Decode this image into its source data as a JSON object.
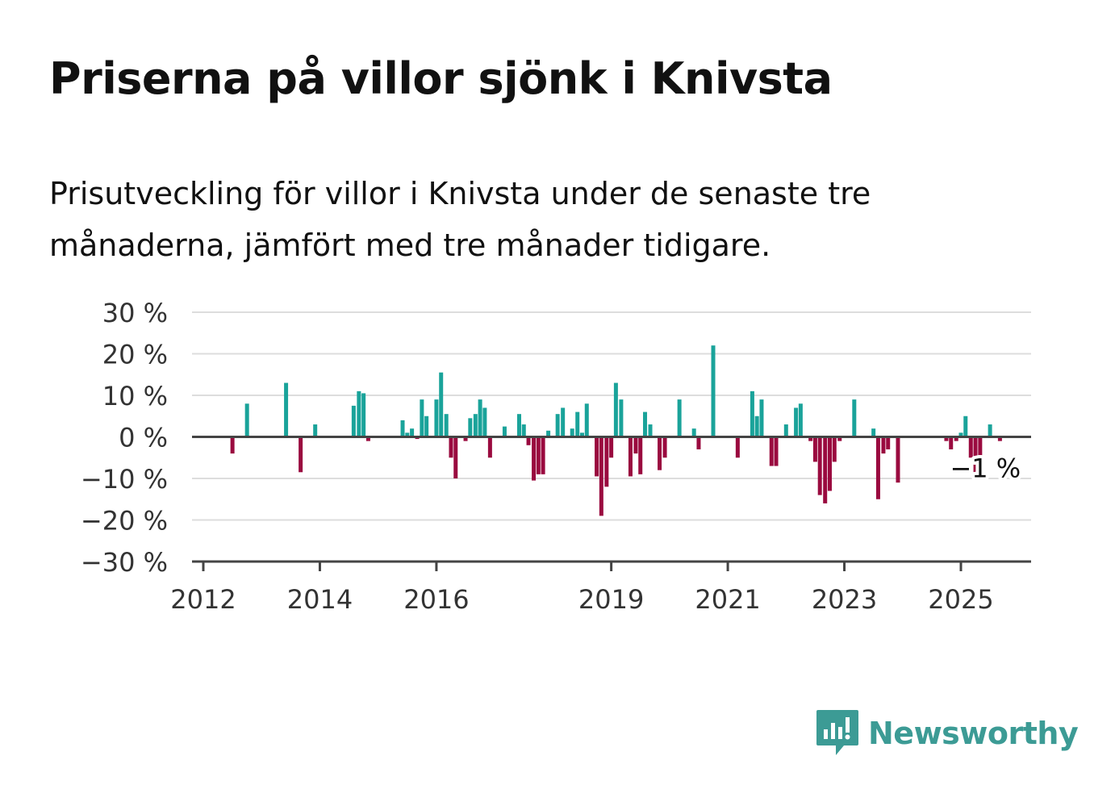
{
  "title": "Priserna på villor sjönk i Knivsta",
  "subtitle": "Prisutveckling för villor i Knivsta under de senaste tre månaderna, jämfört med tre månader tidigare.",
  "brand": {
    "name": "Newsworthy",
    "icon": "newsworthy-logo-icon"
  },
  "colors": {
    "positive": "#1aa39a",
    "negative": "#9a0a3f",
    "grid": "#dddddd",
    "axis": "#444444"
  },
  "chart_data": {
    "type": "bar",
    "x_unit": "year",
    "ylim": [
      -30,
      30
    ],
    "y_ticks": [
      {
        "value": 30,
        "label": "30 %"
      },
      {
        "value": 20,
        "label": "20 %"
      },
      {
        "value": 10,
        "label": "10 %"
      },
      {
        "value": 0,
        "label": "0 %"
      },
      {
        "value": -10,
        "label": "−10 %"
      },
      {
        "value": -20,
        "label": "−20 %"
      },
      {
        "value": -30,
        "label": "−30 %"
      }
    ],
    "x_ticks": [
      {
        "value": 2012,
        "label": "2012"
      },
      {
        "value": 2014,
        "label": "2014"
      },
      {
        "value": 2016,
        "label": "2016"
      },
      {
        "value": 2019,
        "label": "2019"
      },
      {
        "value": 2021,
        "label": "2021"
      },
      {
        "value": 2023,
        "label": "2023"
      },
      {
        "value": 2025,
        "label": "2025"
      }
    ],
    "xlim": [
      2011.8,
      2026.2
    ],
    "grid": true,
    "annotation": {
      "x": 2025.42,
      "y": -1,
      "label": "−1 %"
    },
    "points": [
      [
        2012.5,
        -4
      ],
      [
        2012.75,
        8
      ],
      [
        2013.42,
        13
      ],
      [
        2013.67,
        -8.5
      ],
      [
        2013.92,
        3
      ],
      [
        2014.58,
        7.5
      ],
      [
        2014.67,
        11
      ],
      [
        2014.75,
        10.5
      ],
      [
        2014.83,
        -1
      ],
      [
        2015.42,
        4
      ],
      [
        2015.5,
        1
      ],
      [
        2015.58,
        2
      ],
      [
        2015.67,
        -0.5
      ],
      [
        2015.75,
        9
      ],
      [
        2015.83,
        5
      ],
      [
        2016.0,
        9
      ],
      [
        2016.08,
        15.5
      ],
      [
        2016.17,
        5.5
      ],
      [
        2016.25,
        -5
      ],
      [
        2016.33,
        -10
      ],
      [
        2016.5,
        -1
      ],
      [
        2016.58,
        4.5
      ],
      [
        2016.67,
        5.5
      ],
      [
        2016.75,
        9
      ],
      [
        2016.83,
        7
      ],
      [
        2016.92,
        -5
      ],
      [
        2017.17,
        2.5
      ],
      [
        2017.42,
        5.5
      ],
      [
        2017.5,
        3
      ],
      [
        2017.58,
        -2
      ],
      [
        2017.67,
        -10.5
      ],
      [
        2017.75,
        -9
      ],
      [
        2017.83,
        -9
      ],
      [
        2017.92,
        1.5
      ],
      [
        2018.08,
        5.5
      ],
      [
        2018.17,
        7
      ],
      [
        2018.33,
        2
      ],
      [
        2018.42,
        6
      ],
      [
        2018.5,
        1
      ],
      [
        2018.58,
        8
      ],
      [
        2018.75,
        -9.5
      ],
      [
        2018.83,
        -19
      ],
      [
        2018.92,
        -12
      ],
      [
        2019.0,
        -5
      ],
      [
        2019.08,
        13
      ],
      [
        2019.17,
        9
      ],
      [
        2019.33,
        -9.5
      ],
      [
        2019.42,
        -4
      ],
      [
        2019.5,
        -9
      ],
      [
        2019.58,
        6
      ],
      [
        2019.67,
        3
      ],
      [
        2019.83,
        -8
      ],
      [
        2019.92,
        -5
      ],
      [
        2020.17,
        9
      ],
      [
        2020.42,
        2
      ],
      [
        2020.5,
        -3
      ],
      [
        2020.75,
        22
      ],
      [
        2021.17,
        -5
      ],
      [
        2021.42,
        11
      ],
      [
        2021.5,
        5
      ],
      [
        2021.58,
        9
      ],
      [
        2021.75,
        -7
      ],
      [
        2021.83,
        -7
      ],
      [
        2022.0,
        3
      ],
      [
        2022.17,
        7
      ],
      [
        2022.25,
        8
      ],
      [
        2022.42,
        -1
      ],
      [
        2022.5,
        -6
      ],
      [
        2022.58,
        -14
      ],
      [
        2022.67,
        -16
      ],
      [
        2022.75,
        -13
      ],
      [
        2022.83,
        -6
      ],
      [
        2022.92,
        -1
      ],
      [
        2023.17,
        9
      ],
      [
        2023.5,
        2
      ],
      [
        2023.58,
        -15
      ],
      [
        2023.67,
        -4
      ],
      [
        2023.75,
        -3
      ],
      [
        2023.92,
        -11
      ],
      [
        2024.75,
        -1
      ],
      [
        2024.83,
        -3
      ],
      [
        2024.92,
        -1
      ],
      [
        2025.0,
        1
      ],
      [
        2025.08,
        5
      ],
      [
        2025.17,
        -5
      ],
      [
        2025.25,
        -8.5
      ],
      [
        2025.33,
        -5
      ],
      [
        2025.5,
        3
      ],
      [
        2025.67,
        -1
      ]
    ]
  }
}
